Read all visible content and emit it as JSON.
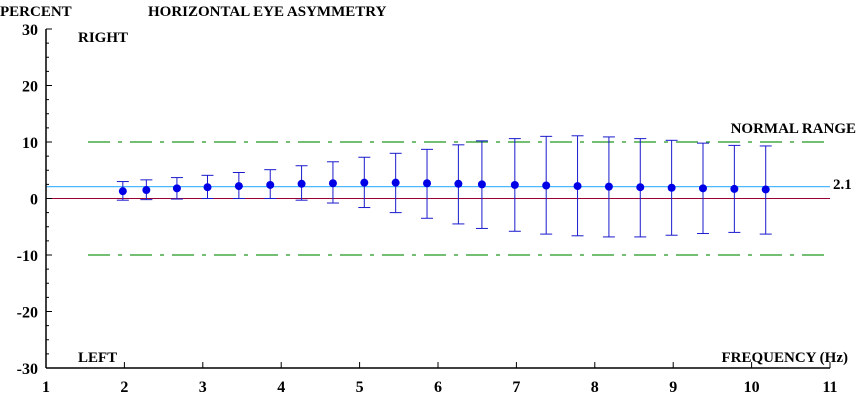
{
  "chart_data": {
    "type": "scatter",
    "title": "HORIZONTAL EYE ASYMMETRY",
    "ylabel": "PERCENT",
    "xlabel": "FREQUENCY (Hz)",
    "xlim": [
      1,
      11
    ],
    "ylim": [
      -30,
      30
    ],
    "x_ticks": [
      "1",
      "2",
      "3",
      "4",
      "5",
      "6",
      "7",
      "8",
      "9",
      "10",
      "11"
    ],
    "y_ticks": [
      "30",
      "20",
      "10",
      "0",
      "-10",
      "-20",
      "-30"
    ],
    "annotations": {
      "right": "RIGHT",
      "left": "LEFT",
      "normal_range": "NORMAL RANGE",
      "mean_label": "2.1"
    },
    "normal_range": [
      -10,
      10
    ],
    "mean_line": 2.1,
    "zero_line": 0,
    "series": [
      {
        "x": [
          1.98,
          2.28,
          2.67,
          3.06,
          3.46,
          3.86,
          4.26,
          4.66,
          5.06,
          5.46,
          5.86,
          6.26,
          6.56,
          6.98,
          7.38,
          7.78,
          8.18,
          8.58,
          8.98,
          9.38,
          9.78,
          10.18
        ],
        "y": [
          1.3,
          1.5,
          1.8,
          2.0,
          2.2,
          2.4,
          2.6,
          2.7,
          2.8,
          2.8,
          2.7,
          2.6,
          2.5,
          2.4,
          2.3,
          2.2,
          2.1,
          2.0,
          1.9,
          1.8,
          1.7,
          1.6
        ],
        "y_upper": [
          3.0,
          3.3,
          3.7,
          4.1,
          4.6,
          5.1,
          5.8,
          6.5,
          7.3,
          8.0,
          8.7,
          9.5,
          10.2,
          10.6,
          11.0,
          11.1,
          10.9,
          10.6,
          10.3,
          9.8,
          9.4,
          9.3
        ],
        "y_lower": [
          -0.3,
          -0.2,
          -0.1,
          0.0,
          0.0,
          0.0,
          -0.3,
          -0.8,
          -1.6,
          -2.5,
          -3.5,
          -4.5,
          -5.3,
          -5.8,
          -6.3,
          -6.6,
          -6.8,
          -6.8,
          -6.5,
          -6.2,
          -6.0,
          -6.3
        ]
      }
    ],
    "colors": {
      "point": "#0000e6",
      "error_bar": "#1a1acc",
      "mean_line": "#4db8ff",
      "zero_line": "#990033",
      "normal_range": "#229922",
      "axis": "#000000"
    }
  }
}
